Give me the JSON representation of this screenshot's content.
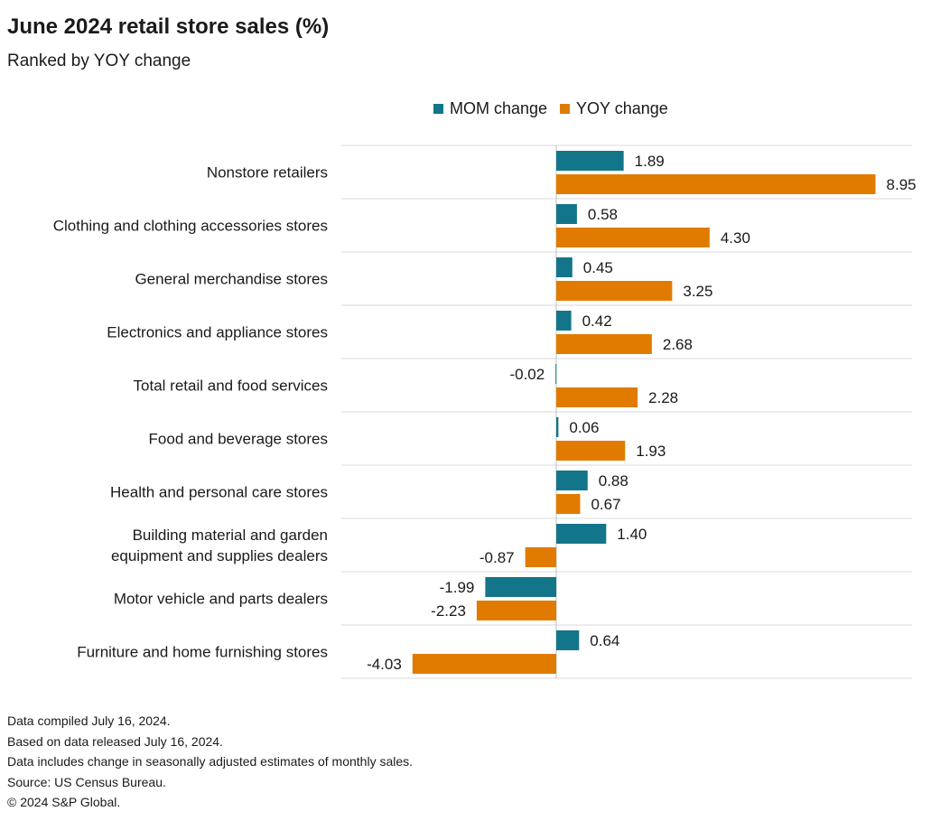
{
  "title": "June 2024 retail store sales (%)",
  "subtitle": "Ranked by YOY change",
  "notes": [
    "Data compiled July 16, 2024.",
    "Based on data released July 16, 2024.",
    "Data includes change in seasonally adjusted estimates of monthly sales.",
    "Source: US Census Bureau.",
    "© 2024 S&P Global."
  ],
  "colors": {
    "mom": "#127589",
    "yoy": "#e07b00",
    "grid": "#d9d9d9",
    "axis": "#bfbfbf"
  },
  "chart_data": {
    "type": "bar",
    "orientation": "horizontal",
    "title": "June 2024 retail store sales (%)",
    "subtitle": "Ranked by YOY change",
    "legend_position": "top",
    "xlim": [
      -4.2,
      9.5
    ],
    "grid": true,
    "categories": [
      [
        "Nonstore retailers"
      ],
      [
        "Clothing and clothing accessories stores"
      ],
      [
        "General merchandise stores"
      ],
      [
        "Electronics and appliance stores"
      ],
      [
        "Total retail and food services"
      ],
      [
        "Food and beverage stores"
      ],
      [
        "Health and personal care stores"
      ],
      [
        "Building material and garden",
        "equipment and supplies dealers"
      ],
      [
        "Motor vehicle and parts dealers"
      ],
      [
        "Furniture and home furnishing stores"
      ]
    ],
    "series": [
      {
        "name": "MOM change",
        "values": [
          1.89,
          0.58,
          0.45,
          0.42,
          -0.02,
          0.06,
          0.88,
          1.4,
          -1.99,
          0.64
        ],
        "labels": [
          "1.89",
          "0.58",
          "0.45",
          "0.42",
          "-0.02",
          "0.06",
          "0.88",
          "1.40",
          "-1.99",
          "0.64"
        ]
      },
      {
        "name": "YOY change",
        "values": [
          8.95,
          4.3,
          3.25,
          2.68,
          2.28,
          1.93,
          0.67,
          -0.87,
          -2.23,
          -4.03
        ],
        "labels": [
          "8.95",
          "4.30",
          "3.25",
          "2.68",
          "2.28",
          "1.93",
          "0.67",
          "-0.87",
          "-2.23",
          "-4.03"
        ]
      }
    ]
  }
}
